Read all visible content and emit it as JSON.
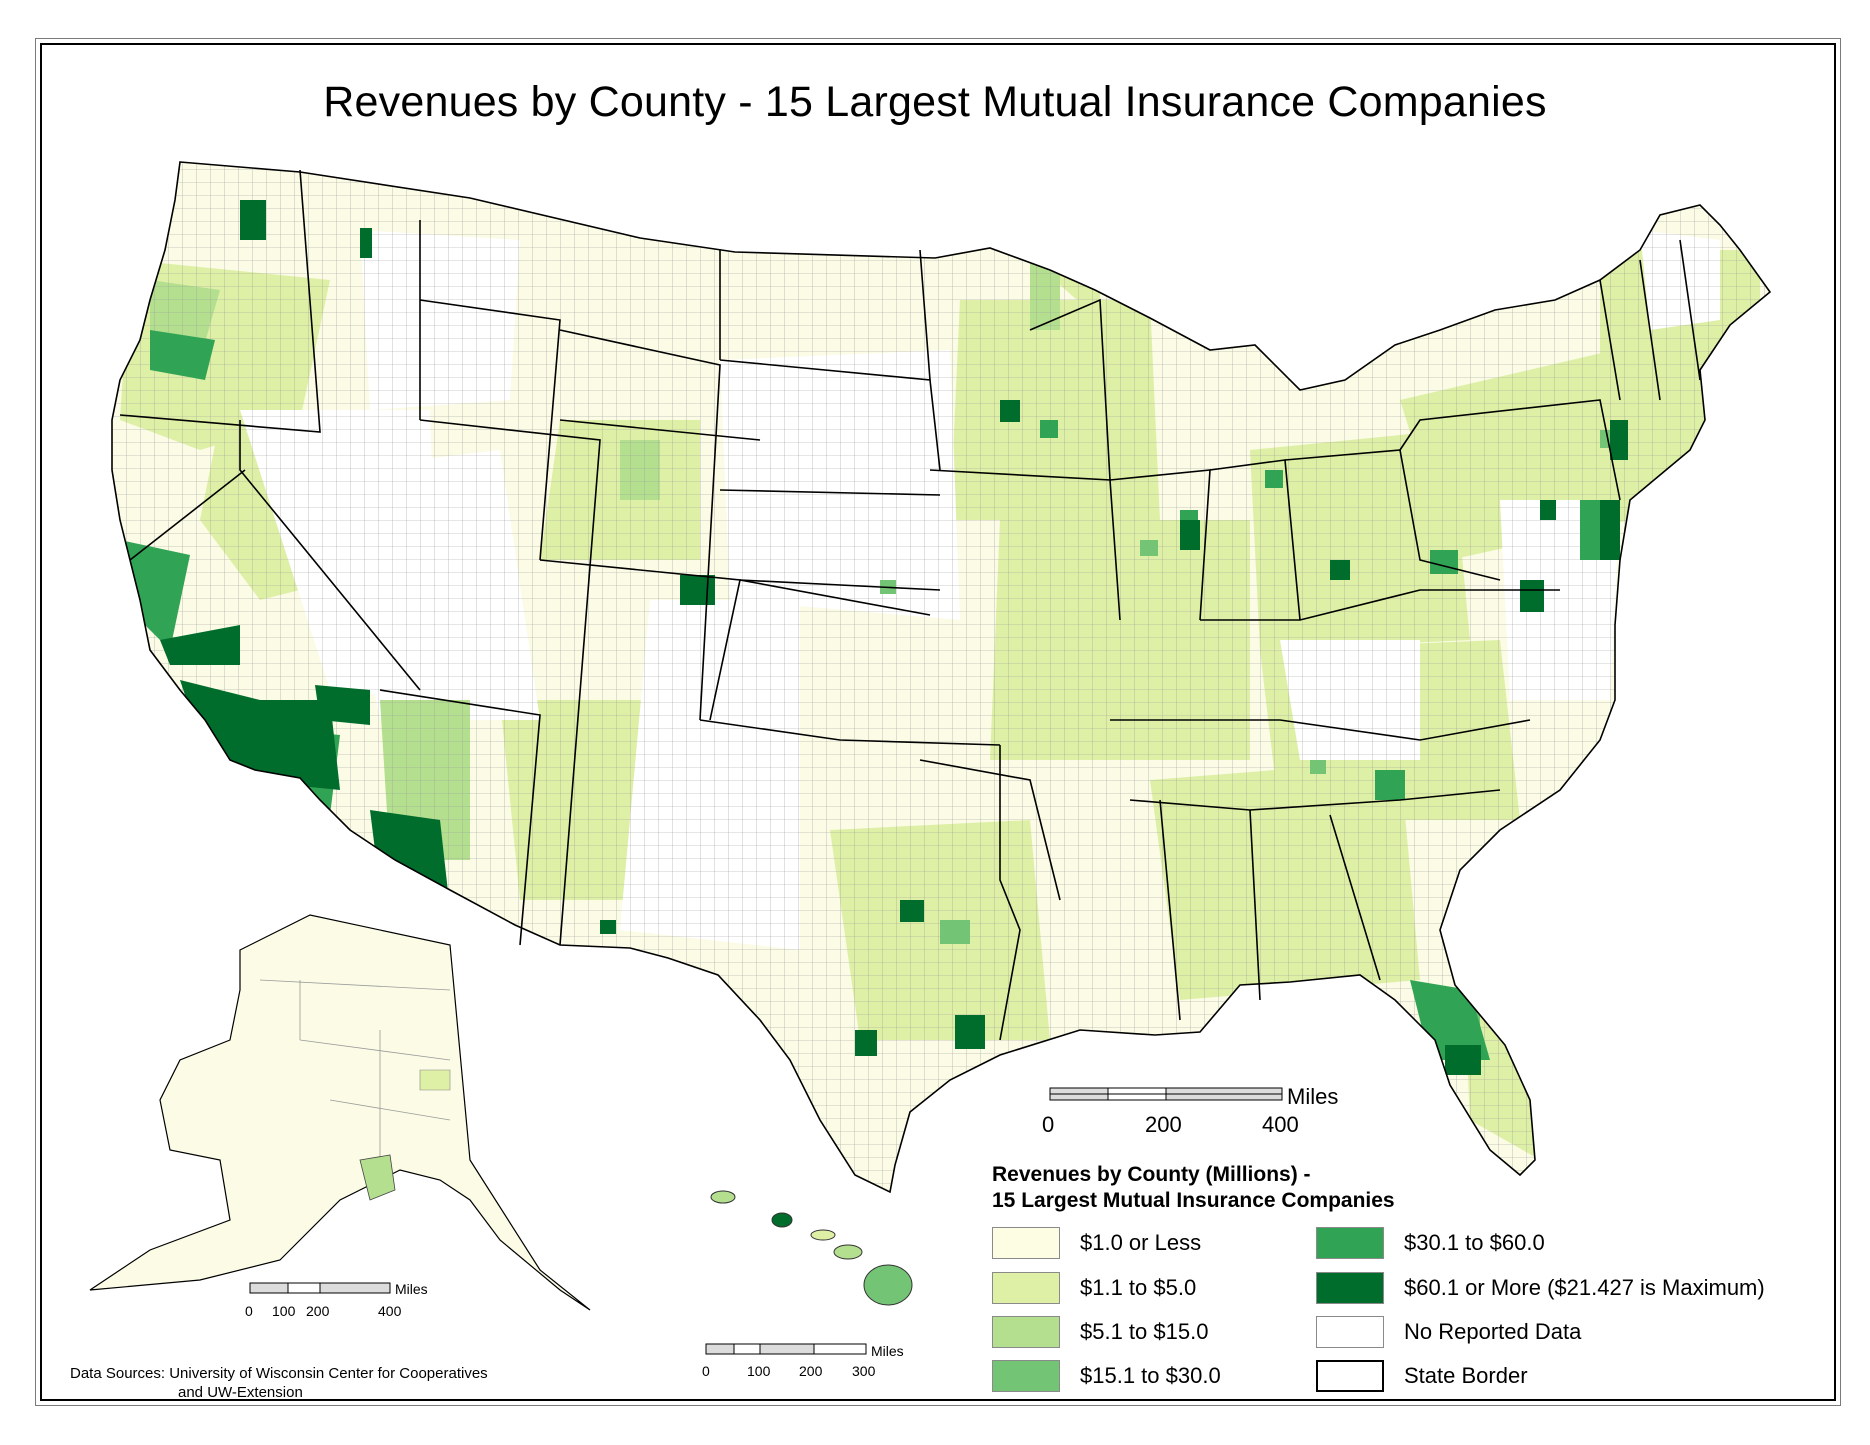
{
  "map": {
    "title": "Revenues by County - 15 Largest Mutual Insurance Companies"
  },
  "legend": {
    "title_line1": "Revenues by County (Millions) -",
    "title_line2": "15 Largest Mutual Insurance Companies",
    "classes": [
      {
        "label": "$1.0 or Less",
        "color": "#fdfde4"
      },
      {
        "label": "$1.1 to $5.0",
        "color": "#def0a6"
      },
      {
        "label": "$5.1 to $15.0",
        "color": "#b3df8f"
      },
      {
        "label": "$15.1 to $30.0",
        "color": "#74c476"
      },
      {
        "label": "$30.1 to $60.0",
        "color": "#31a354"
      },
      {
        "label": "$60.1 or More ($21.427 is Maximum)",
        "color": "#006d2c"
      },
      {
        "label": "No Reported Data",
        "color": "#ffffff"
      },
      {
        "label": "State Border",
        "color": "#000000"
      }
    ]
  },
  "scale_bars": {
    "conus": {
      "unit": "Miles",
      "ticks": [
        "0",
        "200",
        "400"
      ]
    },
    "alaska": {
      "unit": "Miles",
      "ticks": [
        "0",
        "100",
        "200",
        "400"
      ]
    },
    "hawaii": {
      "unit": "Miles",
      "ticks": [
        "0",
        "100",
        "200",
        "300"
      ]
    }
  },
  "sources": {
    "line1": "Data Sources: University of Wisconsin Center for Cooperatives",
    "line2": "and UW-Extension"
  }
}
